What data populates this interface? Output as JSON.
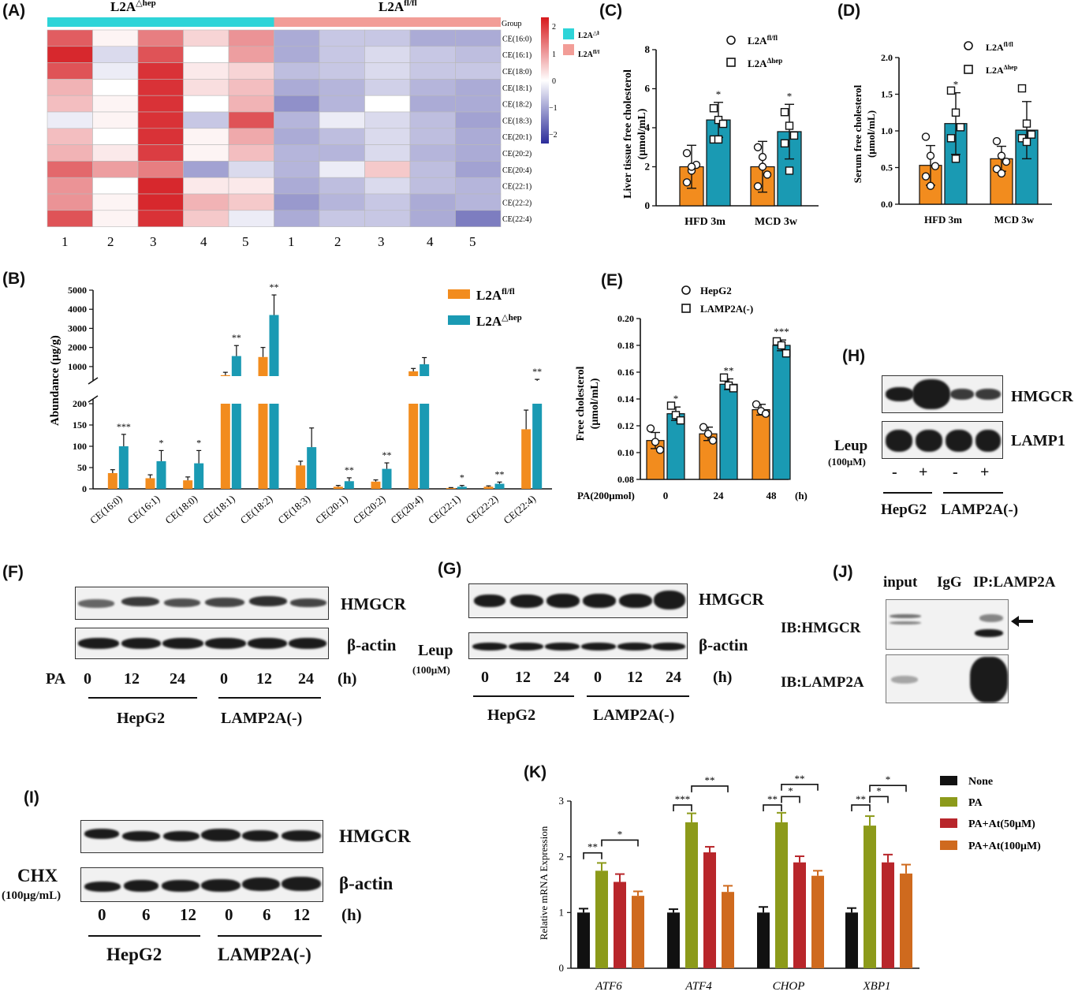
{
  "panel_labels": {
    "A": "(A)",
    "B": "(B)",
    "C": "(C)",
    "D": "(D)",
    "E": "(E)",
    "F": "(F)",
    "G": "(G)",
    "H": "(H)",
    "I": "(I)",
    "J": "(J)",
    "K": "(K)"
  },
  "colors": {
    "orange": "#f28c1e",
    "teal": "#1a9ab3",
    "cyan": "#2ed4d8",
    "salmon": "#f29d97",
    "black": "#111111",
    "olive": "#8c9a1a",
    "red": "#b8262b",
    "dark_orange": "#cf6a1e"
  },
  "A": {
    "group_hep": "L2A",
    "group_hep_sup": "△hep",
    "group_flfl": "L2A",
    "group_flfl_sup": "fl/fl",
    "group_label": "Group",
    "legend_hep": "L2A",
    "legend_hep_sup": "△hep",
    "legend_flfl": "L2A",
    "legend_flfl_sup": "fl/fl",
    "colorbar_ticks": [
      "2",
      "1",
      "0",
      "−1",
      "−2"
    ],
    "sample_labels": [
      "1",
      "2",
      "3",
      "4",
      "5",
      "1",
      "2",
      "3",
      "4",
      "5"
    ]
  },
  "chart_data": [
    {
      "panel": "A",
      "type": "heatmap",
      "rows": [
        "CE(16:0)",
        "CE(16:1)",
        "CE(18:0)",
        "CE(18:1)",
        "CE(18:2)",
        "CE(18:3)",
        "CE(20:1)",
        "CE(20:2)",
        "CE(20:4)",
        "CE(22:1)",
        "CE(22:2)",
        "CE(22:4)"
      ],
      "columns": [
        "1",
        "2",
        "3",
        "4",
        "5",
        "1",
        "2",
        "3",
        "4",
        "5"
      ],
      "groups": [
        "L2A△hep",
        "L2A△hep",
        "L2A△hep",
        "L2A△hep",
        "L2A△hep",
        "L2Afl/fl",
        "L2Afl/fl",
        "L2Afl/fl",
        "L2Afl/fl",
        "L2Afl/fl"
      ],
      "range": [
        -2,
        2
      ],
      "values": [
        [
          1.5,
          0.1,
          1.2,
          0.4,
          1.0,
          -0.9,
          -0.6,
          -0.6,
          -0.9,
          -0.9
        ],
        [
          2.0,
          -0.4,
          1.6,
          0.0,
          0.9,
          -0.9,
          -0.6,
          -0.4,
          -0.6,
          -0.7
        ],
        [
          1.6,
          -0.2,
          1.9,
          0.2,
          0.4,
          -0.7,
          -0.6,
          -0.4,
          -0.6,
          -0.6
        ],
        [
          0.7,
          0.0,
          1.9,
          0.3,
          0.6,
          -0.9,
          -0.8,
          -0.5,
          -0.8,
          -0.9
        ],
        [
          0.6,
          0.1,
          1.9,
          0.0,
          0.7,
          -1.2,
          -0.8,
          0.0,
          -0.9,
          -0.9
        ],
        [
          -0.2,
          0.1,
          1.9,
          -0.6,
          1.6,
          -0.8,
          -0.2,
          -0.4,
          -0.7,
          -1.0
        ],
        [
          0.6,
          0.0,
          1.9,
          0.1,
          0.8,
          -0.9,
          -0.7,
          -0.4,
          -0.7,
          -0.9
        ],
        [
          0.7,
          0.2,
          1.8,
          0.1,
          0.6,
          -0.8,
          -0.8,
          -0.4,
          -0.8,
          -0.9
        ],
        [
          1.4,
          0.9,
          1.2,
          -1.0,
          -0.4,
          -0.8,
          -0.2,
          0.5,
          -0.7,
          -1.0
        ],
        [
          1.0,
          0.0,
          2.0,
          0.2,
          0.2,
          -0.9,
          -0.7,
          -0.4,
          -0.7,
          -0.8
        ],
        [
          1.0,
          0.1,
          2.0,
          0.7,
          0.5,
          -1.1,
          -0.8,
          -0.6,
          -0.9,
          -0.8
        ],
        [
          1.6,
          0.1,
          1.9,
          0.5,
          -0.2,
          -0.9,
          -0.6,
          -0.6,
          -0.9,
          -1.4
        ]
      ]
    },
    {
      "panel": "B",
      "type": "bar",
      "categories": [
        "CE(16:0)",
        "CE(16:1)",
        "CE(18:0)",
        "CE(18:1)",
        "CE(18:2)",
        "CE(18:3)",
        "CE(20:1)",
        "CE(20:2)",
        "CE(20:4)",
        "CE(22:1)",
        "CE(22:2)",
        "CE(22:4)"
      ],
      "ylabel": "Abundance (μg/g)",
      "yticks_low": [
        "0",
        "50",
        "100",
        "150",
        "200"
      ],
      "yticks_high": [
        "1000",
        "2000",
        "3000",
        "4000",
        "5000"
      ],
      "axis_break": [
        200,
        500
      ],
      "series": [
        {
          "name": "L2A",
          "name_sup": "fl/fl",
          "values": [
            37,
            25,
            20,
            550,
            1500,
            55,
            5,
            17,
            750,
            2,
            5,
            140
          ],
          "errors": [
            8,
            8,
            8,
            150,
            500,
            10,
            3,
            4,
            150,
            1,
            2,
            45
          ]
        },
        {
          "name": "L2A",
          "name_sup": "△hep",
          "values": [
            100,
            65,
            60,
            1550,
            3700,
            98,
            18,
            47,
            1120,
            5,
            12,
            250
          ],
          "errors": [
            28,
            25,
            30,
            550,
            1050,
            45,
            8,
            14,
            350,
            3,
            4,
            80
          ]
        }
      ],
      "significance": [
        "***",
        "*",
        "*",
        "**",
        "**",
        "",
        "**",
        "**",
        "",
        "*",
        "**",
        "**"
      ]
    },
    {
      "panel": "C",
      "type": "bar",
      "categories": [
        "HFD 3m",
        "MCD 3w"
      ],
      "ylabel_line1": "Liver tissue free cholesterol",
      "ylabel_line2": "(μmol/mL)",
      "ylim": [
        0,
        8
      ],
      "yticks": [
        "0",
        "2",
        "4",
        "6",
        "8"
      ],
      "series": [
        {
          "name": "L2A",
          "name_sup": "fl/fl",
          "values": [
            2.0,
            2.0
          ],
          "errors": [
            1.1,
            1.3
          ],
          "points": [
            [
              2.7,
              1.8,
              2.1,
              1.2,
              2.0
            ],
            [
              3.0,
              2.5,
              1.6,
              1.0,
              2.0
            ]
          ]
        },
        {
          "name": "L2A",
          "name_sup": "Δhep",
          "values": [
            4.4,
            3.8
          ],
          "errors": [
            0.9,
            1.4
          ],
          "points": [
            [
              5.0,
              4.4,
              4.2,
              3.4,
              3.4
            ],
            [
              4.8,
              4.1,
              3.6,
              3.2,
              1.8
            ]
          ]
        }
      ],
      "significance": [
        "*",
        "*"
      ]
    },
    {
      "panel": "D",
      "type": "bar",
      "categories": [
        "HFD 3m",
        "MCD 3w"
      ],
      "ylabel_line1": "Serum free cholesterol",
      "ylabel_line2": "(μmol/mL)",
      "ylim": [
        0,
        2.0
      ],
      "yticks": [
        "0.0",
        "0.5",
        "1.0",
        "1.5",
        "2.0"
      ],
      "series": [
        {
          "name": "L2A",
          "name_sup": "fl/fl",
          "values": [
            0.53,
            0.62
          ],
          "errors": [
            0.27,
            0.17
          ],
          "points": [
            [
              0.92,
              0.66,
              0.52,
              0.38,
              0.25
            ],
            [
              0.86,
              0.66,
              0.58,
              0.48,
              0.42
            ]
          ]
        },
        {
          "name": "L2A",
          "name_sup": "Δhep",
          "values": [
            1.1,
            1.01
          ],
          "errors": [
            0.42,
            0.39
          ],
          "points": [
            [
              1.55,
              1.25,
              1.05,
              0.9,
              0.62
            ],
            [
              1.58,
              1.1,
              0.95,
              0.9,
              0.85
            ]
          ]
        }
      ],
      "significance": [
        "*",
        ""
      ]
    },
    {
      "panel": "E",
      "type": "bar",
      "categories": [
        "0",
        "24",
        "48"
      ],
      "xlabel_prefix": "PA(200μmol)",
      "xlabel_unit": "(h)",
      "ylabel_line1": "Free cholesterol",
      "ylabel_line2": "(μmol/mL)",
      "ylim": [
        0.08,
        0.2
      ],
      "yticks": [
        "0.08",
        "0.10",
        "0.12",
        "0.14",
        "0.16",
        "0.18",
        "0.20"
      ],
      "series": [
        {
          "name": "HepG2",
          "values": [
            0.109,
            0.114,
            0.132
          ],
          "errors": [
            0.006,
            0.005,
            0.004
          ],
          "points": [
            [
              0.118,
              0.108,
              0.102
            ],
            [
              0.119,
              0.114,
              0.109
            ],
            [
              0.136,
              0.131,
              0.129
            ]
          ]
        },
        {
          "name": "LAMP2A(-)",
          "values": [
            0.129,
            0.151,
            0.18
          ],
          "errors": [
            0.005,
            0.004,
            0.004
          ],
          "points": [
            [
              0.135,
              0.128,
              0.124
            ],
            [
              0.156,
              0.15,
              0.148
            ],
            [
              0.183,
              0.18,
              0.174
            ]
          ]
        }
      ],
      "significance": [
        "*",
        "**",
        "***"
      ]
    },
    {
      "panel": "K",
      "type": "bar",
      "categories": [
        "ATF6",
        "ATF4",
        "CHOP",
        "XBP1"
      ],
      "ylabel": "Relative mRNA Expression",
      "ylim": [
        0,
        3
      ],
      "yticks": [
        "0",
        "1",
        "2",
        "3"
      ],
      "series": [
        {
          "name": "None",
          "values": [
            1.0,
            1.0,
            1.0,
            1.0
          ],
          "errors": [
            0.07,
            0.06,
            0.1,
            0.08
          ]
        },
        {
          "name": "PA",
          "values": [
            1.75,
            2.62,
            2.62,
            2.56
          ],
          "errors": [
            0.14,
            0.16,
            0.17,
            0.17
          ]
        },
        {
          "name": "PA+At(50μM)",
          "values": [
            1.55,
            2.08,
            1.9,
            1.9
          ],
          "errors": [
            0.14,
            0.1,
            0.11,
            0.14
          ]
        },
        {
          "name": "PA+At(100μM)",
          "values": [
            1.3,
            1.37,
            1.66,
            1.7
          ],
          "errors": [
            0.08,
            0.11,
            0.09,
            0.16
          ]
        }
      ],
      "brackets": [
        {
          "label": "**",
          "group": 0
        },
        {
          "label": "*",
          "group": 0
        },
        {
          "label": "***",
          "group": 1
        },
        {
          "label": "**",
          "group": 1
        },
        {
          "label": "**",
          "group": 2
        },
        {
          "label": "*",
          "group": 2
        },
        {
          "label": "**",
          "group": 2
        },
        {
          "label": "**",
          "group": 3
        },
        {
          "label": "*",
          "group": 3
        },
        {
          "label": "*",
          "group": 3
        }
      ]
    }
  ],
  "F": {
    "protein1": "HMGCR",
    "protein2": "β-actin",
    "treatment": "PA",
    "times": [
      "0",
      "12",
      "24",
      "0",
      "12",
      "24"
    ],
    "unit": "(h)",
    "cell1": "HepG2",
    "cell2": "LAMP2A(-)"
  },
  "G": {
    "protein1": "HMGCR",
    "protein2": "β-actin",
    "treatment": "Leup",
    "treatment_dose": "(100μM)",
    "times": [
      "0",
      "12",
      "24",
      "0",
      "12",
      "24"
    ],
    "unit": "(h)",
    "cell1": "HepG2",
    "cell2": "LAMP2A(-)"
  },
  "H": {
    "protein1": "HMGCR",
    "protein2": "LAMP1",
    "treatment": "Leup",
    "treatment_dose": "(100μM)",
    "signs": [
      "-",
      "+",
      "-",
      "+"
    ],
    "cell1": "HepG2",
    "cell2": "LAMP2A(-)"
  },
  "I": {
    "protein1": "HMGCR",
    "protein2": "β-actin",
    "treatment": "CHX",
    "treatment_dose": "(100μg/mL)",
    "times": [
      "0",
      "6",
      "12",
      "0",
      "6",
      "12"
    ],
    "unit": "(h)",
    "cell1": "HepG2",
    "cell2": "LAMP2A(-)"
  },
  "J": {
    "lanes": [
      "input",
      "IgG",
      "IP:LAMP2A"
    ],
    "ib1": "IB:HMGCR",
    "ib2": "IB:LAMP2A"
  }
}
